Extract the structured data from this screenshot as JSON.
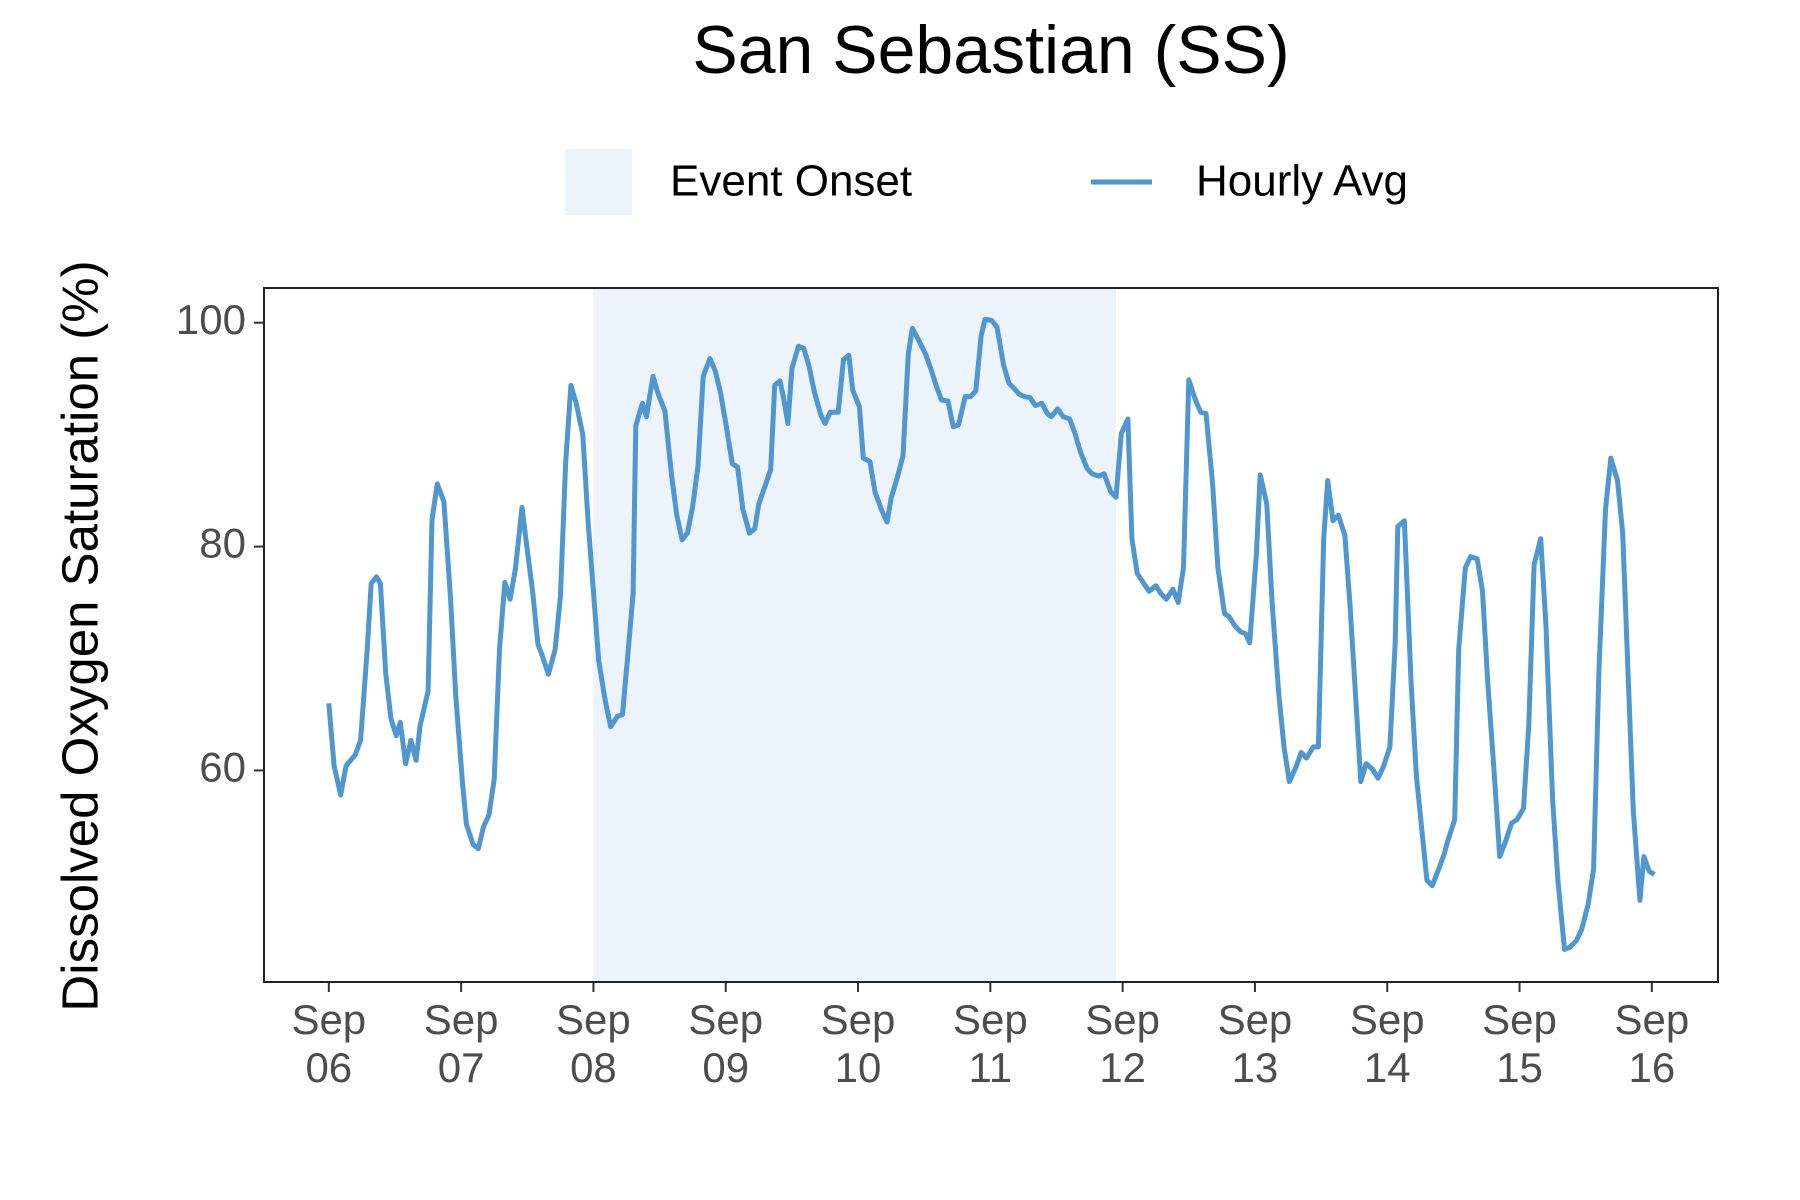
{
  "chart_data": {
    "type": "line",
    "title": "San Sebastian (SS)",
    "y_label": "Dissolved Oxygen Saturation (%)",
    "grid": false,
    "shaded": {
      "name": "Event Onset",
      "color": "#ecf3fb",
      "x": [
        8,
        11.95
      ]
    },
    "xlim": [
      5.51,
      16.5
    ],
    "ylim": [
      41.1,
      103.1
    ],
    "xticks": [
      {
        "value": 6,
        "label": "Sep\n06"
      },
      {
        "value": 7,
        "label": "Sep\n07"
      },
      {
        "value": 8,
        "label": "Sep\n08"
      },
      {
        "value": 9,
        "label": "Sep\n09"
      },
      {
        "value": 10,
        "label": "Sep\n10"
      },
      {
        "value": 11,
        "label": "Sep\n11"
      },
      {
        "value": 12,
        "label": "Sep\n12"
      },
      {
        "value": 13,
        "label": "Sep\n13"
      },
      {
        "value": 14,
        "label": "Sep\n14"
      },
      {
        "value": 15,
        "label": "Sep\n15"
      },
      {
        "value": 16,
        "label": "Sep\n16"
      }
    ],
    "yticks": [
      60,
      80,
      100
    ],
    "x": [
      6.0,
      6.04,
      6.09,
      6.13,
      6.2,
      6.24,
      6.29,
      6.32,
      6.36,
      6.39,
      6.43,
      6.47,
      6.51,
      6.54,
      6.58,
      6.62,
      6.66,
      6.69,
      6.75,
      6.78,
      6.82,
      6.87,
      6.92,
      6.96,
      7.01,
      7.04,
      7.09,
      7.13,
      7.17,
      7.21,
      7.25,
      7.29,
      7.33,
      7.37,
      7.41,
      7.46,
      7.49,
      7.54,
      7.58,
      7.62,
      7.66,
      7.71,
      7.75,
      7.79,
      7.83,
      7.87,
      7.92,
      7.96,
      8.0,
      8.04,
      8.09,
      8.13,
      8.18,
      8.22,
      8.26,
      8.3,
      8.32,
      8.37,
      8.4,
      8.45,
      8.49,
      8.54,
      8.59,
      8.63,
      8.67,
      8.71,
      8.75,
      8.79,
      8.83,
      8.88,
      8.92,
      8.96,
      9.01,
      9.05,
      9.09,
      9.13,
      9.18,
      9.22,
      9.25,
      9.3,
      9.34,
      9.37,
      9.41,
      9.44,
      9.47,
      9.5,
      9.55,
      9.59,
      9.63,
      9.67,
      9.72,
      9.75,
      9.79,
      9.85,
      9.89,
      9.93,
      9.96,
      10.01,
      10.04,
      10.09,
      10.13,
      10.18,
      10.22,
      10.25,
      10.3,
      10.34,
      10.38,
      10.41,
      10.46,
      10.51,
      10.55,
      10.59,
      10.63,
      10.68,
      10.72,
      10.76,
      10.81,
      10.85,
      10.89,
      10.93,
      10.96,
      11.01,
      11.05,
      11.1,
      11.14,
      11.18,
      11.22,
      11.26,
      11.3,
      11.34,
      11.39,
      11.43,
      11.46,
      11.51,
      11.55,
      11.6,
      11.64,
      11.68,
      11.73,
      11.77,
      11.82,
      11.86,
      11.91,
      11.95,
      11.99,
      12.04,
      12.07,
      12.11,
      12.16,
      12.2,
      12.25,
      12.29,
      12.33,
      12.38,
      12.42,
      12.46,
      12.5,
      12.55,
      12.59,
      12.63,
      12.68,
      12.72,
      12.77,
      12.8,
      12.85,
      12.89,
      12.93,
      12.96,
      13.01,
      13.04,
      13.09,
      13.13,
      13.18,
      13.22,
      13.26,
      13.31,
      13.35,
      13.39,
      13.44,
      13.48,
      13.52,
      13.55,
      13.59,
      13.63,
      13.68,
      13.72,
      13.76,
      13.8,
      13.84,
      13.89,
      13.93,
      13.97,
      14.02,
      14.06,
      14.08,
      14.13,
      14.18,
      14.22,
      14.26,
      14.3,
      14.34,
      14.39,
      14.43,
      14.46,
      14.51,
      14.54,
      14.59,
      14.63,
      14.68,
      14.72,
      14.76,
      14.81,
      14.85,
      14.89,
      14.94,
      14.98,
      15.03,
      15.07,
      15.11,
      15.16,
      15.2,
      15.25,
      15.29,
      15.34,
      15.38,
      15.43,
      15.47,
      15.52,
      15.56,
      15.6,
      15.65,
      15.69,
      15.74,
      15.78,
      15.82,
      15.86,
      15.91,
      15.94,
      15.98,
      16.02
    ],
    "series": [
      {
        "name": "Hourly Avg",
        "color": "#5096cf",
        "values": [
          66,
          60.4,
          57.8,
          60.4,
          61.4,
          62.7,
          70.8,
          76.7,
          77.3,
          76.7,
          68.7,
          64.6,
          63.1,
          64.3,
          60.6,
          62.7,
          60.9,
          64,
          67.1,
          82.4,
          85.6,
          84,
          75.4,
          66.6,
          58.9,
          55.2,
          53.4,
          53,
          55,
          56,
          59.2,
          70.8,
          76.8,
          75.3,
          78,
          83.5,
          80.6,
          76,
          71.3,
          70,
          68.6,
          70.8,
          75.5,
          87.4,
          94.4,
          92.8,
          90,
          82.2,
          76,
          69.8,
          66.2,
          63.9,
          64.8,
          65,
          70.3,
          75.8,
          90.8,
          92.8,
          91.6,
          95.2,
          93.6,
          92.1,
          86.4,
          82.8,
          80.6,
          81.2,
          83.6,
          87.2,
          95.2,
          96.8,
          95.7,
          93.8,
          90.3,
          87.4,
          87.1,
          83.3,
          81.2,
          81.6,
          83.8,
          85.5,
          86.9,
          94.4,
          94.8,
          93.1,
          91,
          95.9,
          97.9,
          97.7,
          96.1,
          93.8,
          91.7,
          91,
          92,
          92,
          96.7,
          97.1,
          94,
          92.5,
          87.9,
          87.6,
          84.8,
          83.2,
          82.2,
          84.3,
          86.3,
          88.1,
          97.2,
          99.5,
          98.4,
          97.2,
          95.9,
          94.4,
          93.1,
          93,
          90.7,
          90.9,
          93.4,
          93.4,
          93.9,
          98.8,
          100.3,
          100.2,
          99.6,
          96.2,
          94.6,
          94.1,
          93.6,
          93.4,
          93.3,
          92.6,
          92.8,
          91.9,
          91.6,
          92.3,
          91.6,
          91.4,
          90.1,
          88.5,
          87,
          86.5,
          86.3,
          86.5,
          84.9,
          84.4,
          90.1,
          91.4,
          80.7,
          77.6,
          76.7,
          76,
          76.5,
          75.8,
          75.3,
          76.2,
          75,
          78.1,
          94.9,
          93.1,
          92,
          91.9,
          85.6,
          78.1,
          74,
          73.8,
          72.9,
          72.4,
          72.2,
          71.4,
          79.2,
          86.4,
          83.8,
          75,
          66.8,
          62.1,
          59,
          60.3,
          61.6,
          61.1,
          62.1,
          62.1,
          80.7,
          85.9,
          82.3,
          82.8,
          81,
          74.5,
          66.8,
          59,
          60.6,
          60.1,
          59.3,
          60.3,
          62.1,
          71.4,
          81.8,
          82.3,
          67.8,
          59.5,
          54.9,
          50.2,
          49.7,
          51.2,
          52.5,
          53.8,
          55.6,
          70.8,
          78.1,
          79.1,
          78.9,
          76,
          67.8,
          59.5,
          52.3,
          53.5,
          55.3,
          55.6,
          56.6,
          64.1,
          78.4,
          80.7,
          72.9,
          57.4,
          50.2,
          44,
          44.2,
          44.8,
          45.8,
          48.1,
          51.2,
          68.8,
          83.3,
          87.9,
          85.9,
          81.2,
          68.8,
          56.4,
          48.4,
          52.3,
          51,
          50.7
        ]
      }
    ]
  }
}
